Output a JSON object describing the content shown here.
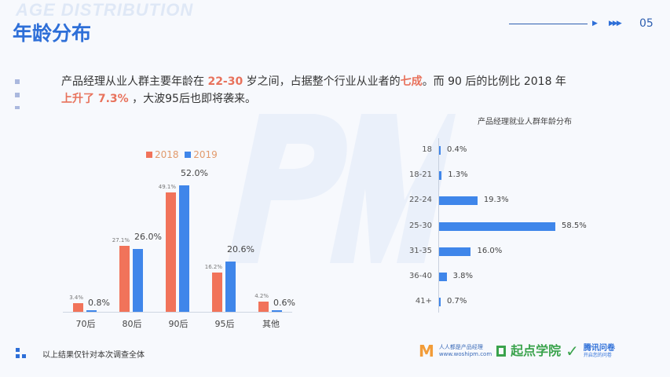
{
  "header": {
    "bg_title": "AGE DISTRIBUTION",
    "title": "年龄分布",
    "page_number": "05"
  },
  "description": {
    "p1": "产品经理从业人群主要年龄在 ",
    "h1": "22-30",
    "p2": " 岁之间，占据整个行业从业者的",
    "h2": "七成",
    "p3": "。而 90 后的比例比 2018 年 ",
    "h3": "上升了 7.3%",
    "p4": " ，大波95后也即将袭来。"
  },
  "colors": {
    "accent": "#2e6fd8",
    "y2018": "#f1735a",
    "y2019": "#3f86ea"
  },
  "watermark": "PM",
  "chart_data": [
    {
      "type": "bar",
      "title": "",
      "categories": [
        "70后",
        "80后",
        "90后",
        "95后",
        "其他"
      ],
      "series": [
        {
          "name": "2018",
          "values": [
            3.4,
            27.1,
            49.1,
            16.2,
            4.2
          ],
          "labels": [
            "3.4%",
            "27.1%",
            "49.1%",
            "16.2%",
            "4.2%"
          ]
        },
        {
          "name": "2019",
          "values": [
            0.8,
            26.0,
            52.0,
            20.6,
            0.6
          ],
          "labels": [
            "0.8%",
            "26.0%",
            "52.0%",
            "20.6%",
            "0.6%"
          ]
        }
      ],
      "legend": "top",
      "ylim": [
        0,
        55
      ]
    },
    {
      "type": "bar",
      "orientation": "horizontal",
      "title": "产品经理就业人群年龄分布",
      "categories": [
        "18",
        "18-21",
        "22-24",
        "25-30",
        "31-35",
        "36-40",
        "41+"
      ],
      "values": [
        0.4,
        1.3,
        19.3,
        58.5,
        16.0,
        3.8,
        0.7
      ],
      "labels": [
        "0.4%",
        "1.3%",
        "19.3%",
        "58.5%",
        "16.0%",
        "3.8%",
        "0.7%"
      ],
      "xlim": [
        0,
        60
      ]
    }
  ],
  "footer": {
    "note": "以上结果仅针对本次调查全体",
    "logos": {
      "woshipm_name": "人人都是产品经理",
      "woshipm_url": "www.woshipm.com",
      "qidian": "起点学院",
      "tencent": "腾讯问卷",
      "tencent_sub": "开启您的问卷"
    }
  }
}
